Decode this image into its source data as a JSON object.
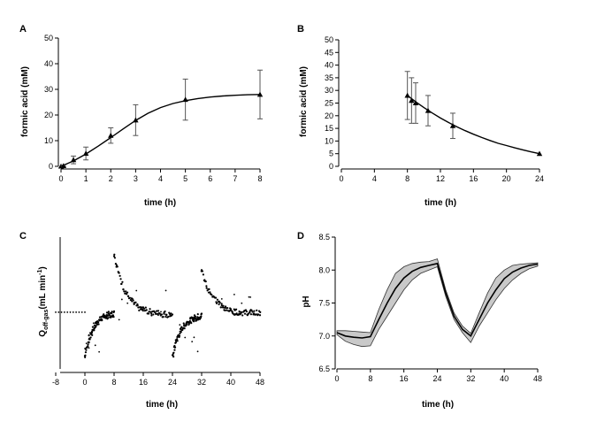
{
  "chart_data": [
    {
      "id": "A",
      "panel_label": "A",
      "type": "scatter",
      "xlabel": "time (h)",
      "ylabel": "formic acid (mM)",
      "xlim": [
        0,
        8
      ],
      "ylim": [
        0,
        50
      ],
      "xticks": [
        0,
        1,
        2,
        3,
        4,
        5,
        6,
        7,
        8
      ],
      "yticks": [
        0,
        10,
        20,
        30,
        40,
        50
      ],
      "points": [
        {
          "x": 0,
          "y": 0,
          "err": 0
        },
        {
          "x": 0.1,
          "y": 0.2,
          "err": 0.3
        },
        {
          "x": 0.5,
          "y": 2.5,
          "err": 1.5
        },
        {
          "x": 1,
          "y": 5,
          "err": 2.5
        },
        {
          "x": 2,
          "y": 12,
          "err": 3
        },
        {
          "x": 3,
          "y": 18,
          "err": 6
        },
        {
          "x": 5,
          "y": 26,
          "err": 8
        },
        {
          "x": 8,
          "y": 28,
          "err": 9.5
        }
      ],
      "fit": [
        [
          0,
          0
        ],
        [
          0.5,
          2.1
        ],
        [
          1,
          4.8
        ],
        [
          1.5,
          7.9
        ],
        [
          2,
          11.2
        ],
        [
          2.5,
          14.6
        ],
        [
          3,
          17.9
        ],
        [
          3.5,
          20.7
        ],
        [
          4,
          22.9
        ],
        [
          4.5,
          24.5
        ],
        [
          5,
          25.6
        ],
        [
          5.5,
          26.4
        ],
        [
          6,
          27
        ],
        [
          6.5,
          27.4
        ],
        [
          7,
          27.7
        ],
        [
          7.5,
          27.9
        ],
        [
          8,
          28
        ]
      ]
    },
    {
      "id": "B",
      "panel_label": "B",
      "type": "scatter",
      "xlabel": "time (h)",
      "ylabel": "formic acid (mM)",
      "xlim": [
        0,
        24
      ],
      "ylim": [
        0,
        50
      ],
      "xticks": [
        0,
        4,
        8,
        12,
        16,
        20,
        24
      ],
      "yticks": [
        0,
        5,
        10,
        15,
        20,
        25,
        30,
        35,
        40,
        45,
        50
      ],
      "points": [
        {
          "x": 8,
          "y": 28,
          "err": 9.5
        },
        {
          "x": 8.5,
          "y": 26,
          "err": 9
        },
        {
          "x": 9,
          "y": 25,
          "err": 8
        },
        {
          "x": 10.5,
          "y": 22,
          "err": 6
        },
        {
          "x": 13.5,
          "y": 16,
          "err": 5
        },
        {
          "x": 24,
          "y": 5,
          "err": 0
        }
      ],
      "fit": [
        [
          8,
          28
        ],
        [
          9,
          25.5
        ],
        [
          10,
          23.2
        ],
        [
          11,
          21.1
        ],
        [
          12,
          19.1
        ],
        [
          13,
          17.3
        ],
        [
          14,
          15.6
        ],
        [
          15,
          14.1
        ],
        [
          16,
          12.7
        ],
        [
          17,
          11.4
        ],
        [
          18,
          10.2
        ],
        [
          19,
          9.1
        ],
        [
          20,
          8.2
        ],
        [
          21,
          7.3
        ],
        [
          22,
          6.5
        ],
        [
          23,
          5.7
        ],
        [
          24,
          5
        ]
      ]
    },
    {
      "id": "C",
      "panel_label": "C",
      "type": "scatter",
      "xlabel": "time (h)",
      "ylabel_main": "Q",
      "ylabel_sub": "off-gas",
      "ylabel_unit": "(mL min",
      "ylabel_sup": "-1",
      "ylabel_close": ")",
      "xlim": [
        -8,
        48
      ],
      "ylim": [
        0,
        100
      ],
      "xticks": [
        -8,
        0,
        8,
        16,
        24,
        32,
        40,
        48
      ],
      "baseline": {
        "x_from": -8,
        "x_to": 0,
        "y": 43
      },
      "segments": [
        {
          "x_from": 0,
          "x_to": 8,
          "shape": "rise",
          "y_start": 10,
          "y_end": 42
        },
        {
          "x_from": 8,
          "x_to": 24,
          "shape": "decay",
          "y_start": 88,
          "y_end": 41
        },
        {
          "x_from": 24,
          "x_to": 32,
          "shape": "rise",
          "y_start": 10,
          "y_end": 40
        },
        {
          "x_from": 32,
          "x_to": 48,
          "shape": "decay",
          "y_start": 75,
          "y_end": 42
        }
      ]
    },
    {
      "id": "D",
      "panel_label": "D",
      "type": "area",
      "xlabel": "time (h)",
      "ylabel": "pH",
      "xlim": [
        0,
        48
      ],
      "ylim": [
        6.5,
        8.5
      ],
      "xticks": [
        0,
        8,
        16,
        24,
        32,
        40,
        48
      ],
      "yticks": [
        6.5,
        7.0,
        7.5,
        8.0,
        8.5
      ],
      "ytick_labels": [
        "6.5",
        "7.0",
        "7.5",
        "8.0",
        "8.5"
      ],
      "mean": [
        [
          0,
          7.05
        ],
        [
          2,
          7.0
        ],
        [
          4,
          6.98
        ],
        [
          6,
          6.97
        ],
        [
          8,
          6.99
        ],
        [
          10,
          7.25
        ],
        [
          12,
          7.5
        ],
        [
          14,
          7.72
        ],
        [
          16,
          7.88
        ],
        [
          18,
          7.98
        ],
        [
          20,
          8.04
        ],
        [
          22,
          8.07
        ],
        [
          24,
          8.1
        ],
        [
          26,
          7.65
        ],
        [
          28,
          7.3
        ],
        [
          30,
          7.1
        ],
        [
          32,
          7.0
        ],
        [
          34,
          7.25
        ],
        [
          36,
          7.5
        ],
        [
          38,
          7.7
        ],
        [
          40,
          7.87
        ],
        [
          42,
          7.97
        ],
        [
          44,
          8.03
        ],
        [
          46,
          8.07
        ],
        [
          48,
          8.09
        ]
      ],
      "upper": [
        [
          0,
          7.08
        ],
        [
          2,
          7.08
        ],
        [
          4,
          7.07
        ],
        [
          6,
          7.06
        ],
        [
          8,
          7.05
        ],
        [
          10,
          7.4
        ],
        [
          12,
          7.7
        ],
        [
          14,
          7.95
        ],
        [
          16,
          8.05
        ],
        [
          18,
          8.1
        ],
        [
          20,
          8.12
        ],
        [
          22,
          8.13
        ],
        [
          24,
          8.17
        ],
        [
          26,
          7.7
        ],
        [
          28,
          7.35
        ],
        [
          30,
          7.15
        ],
        [
          32,
          7.04
        ],
        [
          34,
          7.35
        ],
        [
          36,
          7.65
        ],
        [
          38,
          7.88
        ],
        [
          40,
          8.0
        ],
        [
          42,
          8.07
        ],
        [
          44,
          8.09
        ],
        [
          46,
          8.1
        ],
        [
          48,
          8.11
        ]
      ],
      "lower": [
        [
          0,
          7.02
        ],
        [
          2,
          6.92
        ],
        [
          4,
          6.87
        ],
        [
          6,
          6.84
        ],
        [
          8,
          6.85
        ],
        [
          10,
          7.1
        ],
        [
          12,
          7.3
        ],
        [
          14,
          7.5
        ],
        [
          16,
          7.7
        ],
        [
          18,
          7.85
        ],
        [
          20,
          7.95
        ],
        [
          22,
          8.0
        ],
        [
          24,
          8.05
        ],
        [
          26,
          7.6
        ],
        [
          28,
          7.25
        ],
        [
          30,
          7.05
        ],
        [
          32,
          6.9
        ],
        [
          34,
          7.15
        ],
        [
          36,
          7.35
        ],
        [
          38,
          7.55
        ],
        [
          40,
          7.72
        ],
        [
          42,
          7.85
        ],
        [
          44,
          7.95
        ],
        [
          46,
          8.02
        ],
        [
          48,
          8.06
        ]
      ]
    }
  ]
}
